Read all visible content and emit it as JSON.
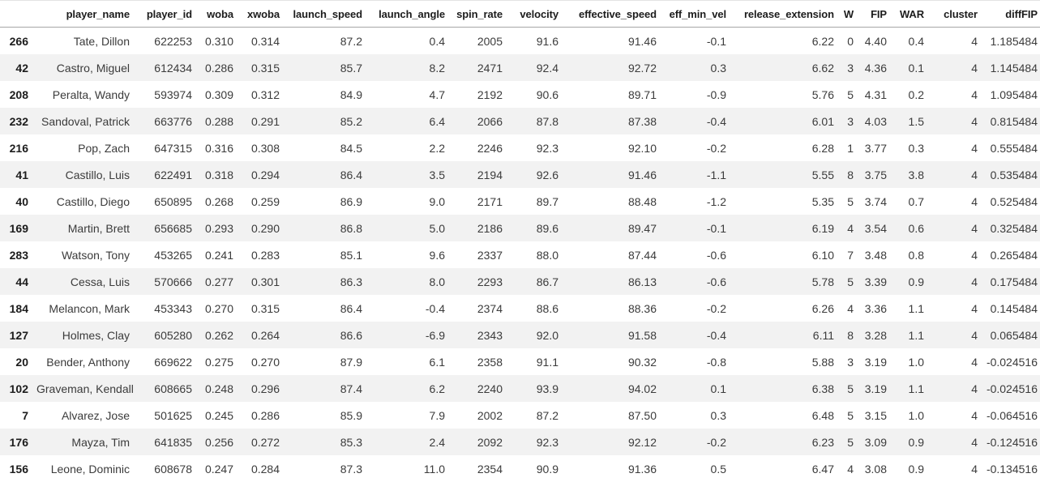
{
  "colors": {
    "stripe": "#f2f2f2",
    "header_border": "#a6a6a6",
    "top_border": "#e3e3e3",
    "header_text": "#1c1c1c",
    "body_text": "#3b3b3b"
  },
  "table": {
    "index_header": "",
    "columns": [
      "player_name",
      "player_id",
      "woba",
      "xwoba",
      "launch_speed",
      "launch_angle",
      "spin_rate",
      "velocity",
      "effective_speed",
      "eff_min_vel",
      "release_extension",
      "W",
      "FIP",
      "WAR",
      "cluster",
      "diffFIP"
    ],
    "rows": [
      {
        "index": "266",
        "cells": [
          "Tate, Dillon",
          "622253",
          "0.310",
          "0.314",
          "87.2",
          "0.4",
          "2005",
          "91.6",
          "91.46",
          "-0.1",
          "6.22",
          "0",
          "4.40",
          "0.4",
          "4",
          "1.185484"
        ]
      },
      {
        "index": "42",
        "cells": [
          "Castro, Miguel",
          "612434",
          "0.286",
          "0.315",
          "85.7",
          "8.2",
          "2471",
          "92.4",
          "92.72",
          "0.3",
          "6.62",
          "3",
          "4.36",
          "0.1",
          "4",
          "1.145484"
        ]
      },
      {
        "index": "208",
        "cells": [
          "Peralta, Wandy",
          "593974",
          "0.309",
          "0.312",
          "84.9",
          "4.7",
          "2192",
          "90.6",
          "89.71",
          "-0.9",
          "5.76",
          "5",
          "4.31",
          "0.2",
          "4",
          "1.095484"
        ]
      },
      {
        "index": "232",
        "cells": [
          "Sandoval, Patrick",
          "663776",
          "0.288",
          "0.291",
          "85.2",
          "6.4",
          "2066",
          "87.8",
          "87.38",
          "-0.4",
          "6.01",
          "3",
          "4.03",
          "1.5",
          "4",
          "0.815484"
        ]
      },
      {
        "index": "216",
        "cells": [
          "Pop, Zach",
          "647315",
          "0.316",
          "0.308",
          "84.5",
          "2.2",
          "2246",
          "92.3",
          "92.10",
          "-0.2",
          "6.28",
          "1",
          "3.77",
          "0.3",
          "4",
          "0.555484"
        ]
      },
      {
        "index": "41",
        "cells": [
          "Castillo, Luis",
          "622491",
          "0.318",
          "0.294",
          "86.4",
          "3.5",
          "2194",
          "92.6",
          "91.46",
          "-1.1",
          "5.55",
          "8",
          "3.75",
          "3.8",
          "4",
          "0.535484"
        ]
      },
      {
        "index": "40",
        "cells": [
          "Castillo, Diego",
          "650895",
          "0.268",
          "0.259",
          "86.9",
          "9.0",
          "2171",
          "89.7",
          "88.48",
          "-1.2",
          "5.35",
          "5",
          "3.74",
          "0.7",
          "4",
          "0.525484"
        ]
      },
      {
        "index": "169",
        "cells": [
          "Martin, Brett",
          "656685",
          "0.293",
          "0.290",
          "86.8",
          "5.0",
          "2186",
          "89.6",
          "89.47",
          "-0.1",
          "6.19",
          "4",
          "3.54",
          "0.6",
          "4",
          "0.325484"
        ]
      },
      {
        "index": "283",
        "cells": [
          "Watson, Tony",
          "453265",
          "0.241",
          "0.283",
          "85.1",
          "9.6",
          "2337",
          "88.0",
          "87.44",
          "-0.6",
          "6.10",
          "7",
          "3.48",
          "0.8",
          "4",
          "0.265484"
        ]
      },
      {
        "index": "44",
        "cells": [
          "Cessa, Luis",
          "570666",
          "0.277",
          "0.301",
          "86.3",
          "8.0",
          "2293",
          "86.7",
          "86.13",
          "-0.6",
          "5.78",
          "5",
          "3.39",
          "0.9",
          "4",
          "0.175484"
        ]
      },
      {
        "index": "184",
        "cells": [
          "Melancon, Mark",
          "453343",
          "0.270",
          "0.315",
          "86.4",
          "-0.4",
          "2374",
          "88.6",
          "88.36",
          "-0.2",
          "6.26",
          "4",
          "3.36",
          "1.1",
          "4",
          "0.145484"
        ]
      },
      {
        "index": "127",
        "cells": [
          "Holmes, Clay",
          "605280",
          "0.262",
          "0.264",
          "86.6",
          "-6.9",
          "2343",
          "92.0",
          "91.58",
          "-0.4",
          "6.11",
          "8",
          "3.28",
          "1.1",
          "4",
          "0.065484"
        ]
      },
      {
        "index": "20",
        "cells": [
          "Bender, Anthony",
          "669622",
          "0.275",
          "0.270",
          "87.9",
          "6.1",
          "2358",
          "91.1",
          "90.32",
          "-0.8",
          "5.88",
          "3",
          "3.19",
          "1.0",
          "4",
          "-0.024516"
        ]
      },
      {
        "index": "102",
        "cells": [
          "Graveman, Kendall",
          "608665",
          "0.248",
          "0.296",
          "87.4",
          "6.2",
          "2240",
          "93.9",
          "94.02",
          "0.1",
          "6.38",
          "5",
          "3.19",
          "1.1",
          "4",
          "-0.024516"
        ]
      },
      {
        "index": "7",
        "cells": [
          "Alvarez, Jose",
          "501625",
          "0.245",
          "0.286",
          "85.9",
          "7.9",
          "2002",
          "87.2",
          "87.50",
          "0.3",
          "6.48",
          "5",
          "3.15",
          "1.0",
          "4",
          "-0.064516"
        ]
      },
      {
        "index": "176",
        "cells": [
          "Mayza, Tim",
          "641835",
          "0.256",
          "0.272",
          "85.3",
          "2.4",
          "2092",
          "92.3",
          "92.12",
          "-0.2",
          "6.23",
          "5",
          "3.09",
          "0.9",
          "4",
          "-0.124516"
        ]
      },
      {
        "index": "156",
        "cells": [
          "Leone, Dominic",
          "608678",
          "0.247",
          "0.284",
          "87.3",
          "11.0",
          "2354",
          "90.9",
          "91.36",
          "0.5",
          "6.47",
          "4",
          "3.08",
          "0.9",
          "4",
          "-0.134516"
        ]
      }
    ]
  }
}
